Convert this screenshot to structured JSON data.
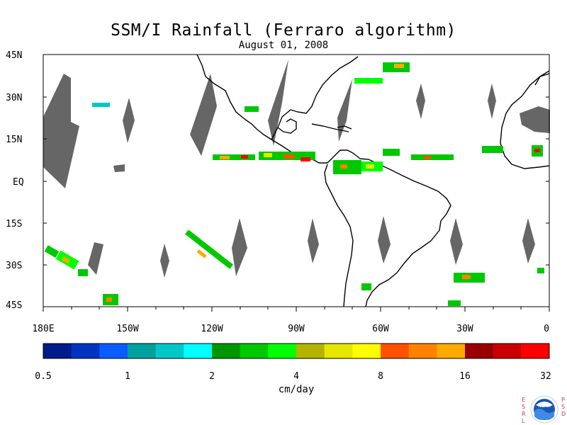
{
  "title": "SSM/I Rainfall (Ferraro algorithm)",
  "subtitle": "August 01, 2008",
  "map": {
    "lat_labels": [
      "45N",
      "30N",
      "15N",
      "EQ",
      "15S",
      "30S",
      "45S"
    ],
    "lon_labels": [
      "180E",
      "150W",
      "120W",
      "90W",
      "60W",
      "30W",
      "0"
    ],
    "extent": {
      "lon_min": -180,
      "lon_max": 0,
      "lat_min": -45,
      "lat_max": 45
    },
    "no_data_color": "#666666",
    "coastline_color": "#000000"
  },
  "colorbar": {
    "unit": "cm/day",
    "tick_labels": [
      "0.5",
      "1",
      "2",
      "4",
      "8",
      "16",
      "32"
    ],
    "colors": [
      "#001b8a",
      "#0033c0",
      "#0a5cff",
      "#00a0a0",
      "#00c8c8",
      "#00ffff",
      "#009600",
      "#00c800",
      "#00ff00",
      "#b4b400",
      "#e6e600",
      "#ffff00",
      "#ff5000",
      "#ff8200",
      "#ffaa00",
      "#960000",
      "#c80000",
      "#ff0000"
    ]
  },
  "logo": {
    "left_letters": [
      "E",
      "S",
      "R",
      "L"
    ],
    "right_letters": [
      "P",
      "S",
      "D"
    ],
    "name": "NOAA"
  }
}
